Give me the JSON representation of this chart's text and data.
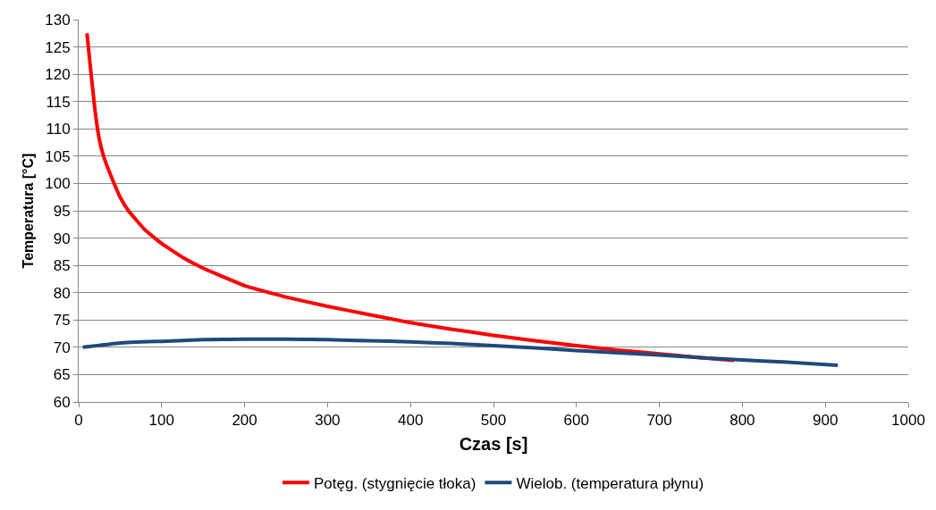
{
  "chart_data": {
    "type": "line",
    "xlabel": "Czas [s]",
    "ylabel": "Temperatura [°C]",
    "xlim": [
      0,
      1000
    ],
    "xticks": [
      0,
      100,
      200,
      300,
      400,
      500,
      600,
      700,
      800,
      900,
      1000
    ],
    "ylim": [
      60,
      130
    ],
    "yticks": [
      60,
      65,
      70,
      75,
      80,
      85,
      90,
      95,
      100,
      105,
      110,
      115,
      120,
      125,
      130
    ],
    "grid": "y",
    "legend": "bottom",
    "marker": "none",
    "line_style": "solid",
    "series": [
      {
        "name": "Potęg. (stygnięcie tłoka)",
        "color": "#ff0000",
        "x": [
          10,
          15,
          20,
          25,
          30,
          40,
          50,
          60,
          80,
          100,
          125,
          150,
          200,
          250,
          300,
          350,
          400,
          450,
          500,
          550,
          600,
          650,
          700,
          750,
          790
        ],
        "values": [
          127.5,
          120,
          113,
          108,
          105,
          101,
          97.5,
          95,
          91.5,
          89,
          86.5,
          84.5,
          81.3,
          79.2,
          77.5,
          76,
          74.5,
          73.3,
          72.2,
          71.2,
          70.3,
          69.5,
          68.8,
          68.1,
          67.6
        ]
      },
      {
        "name": "Wielob. (temperatura płynu)",
        "color": "#1f497d",
        "x": [
          5,
          50,
          100,
          150,
          200,
          250,
          300,
          350,
          400,
          450,
          500,
          550,
          600,
          650,
          700,
          750,
          800,
          850,
          915
        ],
        "values": [
          70,
          70.8,
          71.1,
          71.4,
          71.5,
          71.5,
          71.4,
          71.2,
          71.0,
          70.7,
          70.3,
          69.9,
          69.4,
          69.0,
          68.6,
          68.1,
          67.7,
          67.3,
          66.7
        ]
      }
    ]
  }
}
